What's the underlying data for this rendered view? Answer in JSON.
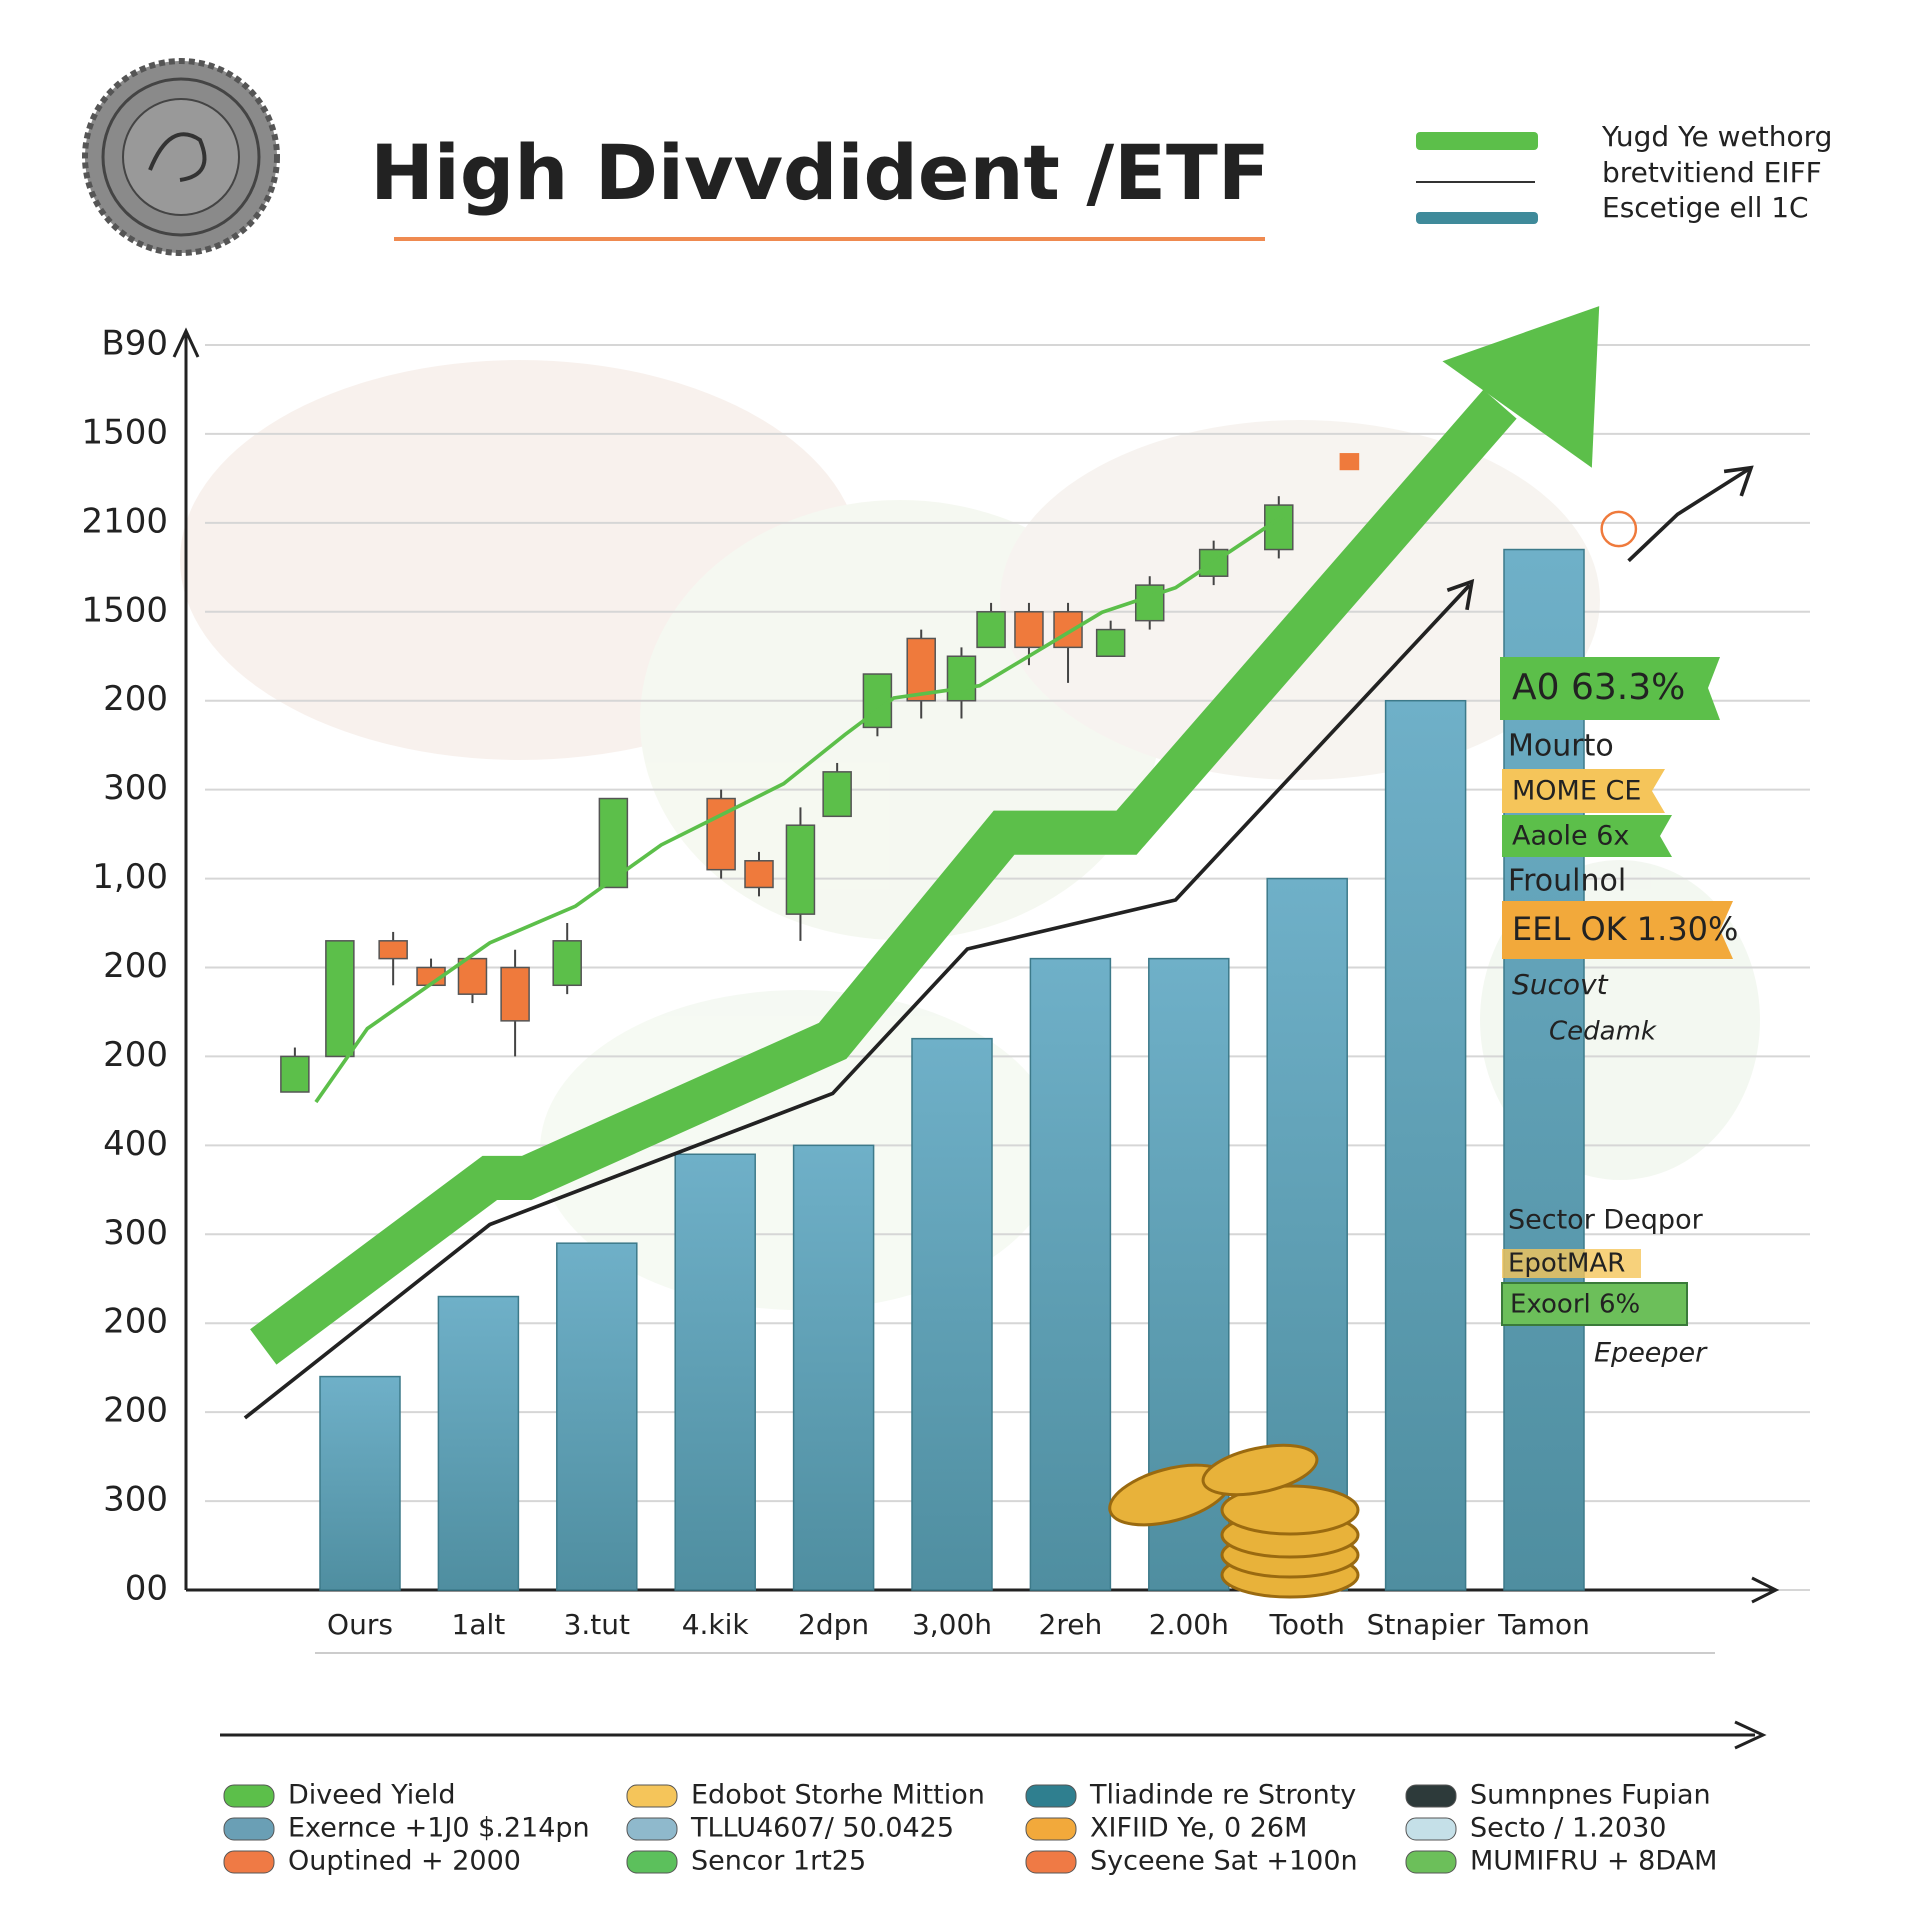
{
  "chart_data": {
    "type": "bar",
    "title": "High Divvdident /ETF",
    "categories": [
      "Ours",
      "1alt",
      "3.tut",
      "4.kik",
      "2dpn",
      "3,00h",
      "2reh",
      "2.00h",
      "Tooth",
      "Stnapier",
      "Tamon"
    ],
    "values": [
      2.4,
      3.3,
      3.9,
      4.9,
      5.0,
      6.2,
      7.1,
      7.1,
      8.0,
      10.0,
      11.7
    ],
    "color": "#6fb0c8",
    "ylim": [
      0,
      14
    ],
    "yticks": [
      {
        "value": 0,
        "label": "00"
      },
      {
        "value": 1,
        "label": "300"
      },
      {
        "value": 2,
        "label": "200"
      },
      {
        "value": 3,
        "label": "200"
      },
      {
        "value": 4,
        "label": "300"
      },
      {
        "value": 5,
        "label": "400"
      },
      {
        "value": 6,
        "label": "200"
      },
      {
        "value": 7,
        "label": "200"
      },
      {
        "value": 8,
        "label": "1,00"
      },
      {
        "value": 9,
        "label": "300"
      },
      {
        "value": 10,
        "label": "200"
      },
      {
        "value": 11,
        "label": "1500"
      },
      {
        "value": 12,
        "label": "2100"
      },
      {
        "value": 13,
        "label": "1500"
      },
      {
        "value": 14,
        "label": "B90"
      }
    ],
    "grid": true,
    "candles": [
      {
        "x": -0.55,
        "open": 5.6,
        "close": 6.0,
        "high": 6.1,
        "low": 5.6
      },
      {
        "x": -0.17,
        "open": 6.0,
        "close": 7.3,
        "high": 7.3,
        "low": 6.0
      },
      {
        "x": 0.28,
        "open": 7.3,
        "close": 7.1,
        "high": 7.4,
        "low": 6.8
      },
      {
        "x": 0.6,
        "open": 7.0,
        "close": 6.8,
        "high": 7.1,
        "low": 6.8
      },
      {
        "x": 0.95,
        "open": 7.1,
        "close": 6.7,
        "high": 7.1,
        "low": 6.6
      },
      {
        "x": 1.31,
        "open": 7.0,
        "close": 6.4,
        "high": 7.2,
        "low": 6.0
      },
      {
        "x": 1.75,
        "open": 6.8,
        "close": 7.3,
        "high": 7.5,
        "low": 6.7
      },
      {
        "x": 2.14,
        "open": 7.9,
        "close": 8.9,
        "high": 8.9,
        "low": 7.9
      },
      {
        "x": 3.05,
        "open": 8.9,
        "close": 8.1,
        "high": 9.0,
        "low": 8.0
      },
      {
        "x": 3.37,
        "open": 8.2,
        "close": 7.9,
        "high": 8.3,
        "low": 7.8
      },
      {
        "x": 3.72,
        "open": 7.6,
        "close": 8.6,
        "high": 8.8,
        "low": 7.3
      },
      {
        "x": 4.03,
        "open": 8.7,
        "close": 9.2,
        "high": 9.3,
        "low": 8.7
      },
      {
        "x": 4.37,
        "open": 9.7,
        "close": 10.3,
        "high": 10.3,
        "low": 9.6
      },
      {
        "x": 4.74,
        "open": 10.7,
        "close": 10.0,
        "high": 10.8,
        "low": 9.8
      },
      {
        "x": 5.08,
        "open": 10.0,
        "close": 10.5,
        "high": 10.6,
        "low": 9.8
      },
      {
        "x": 5.33,
        "open": 10.6,
        "close": 11.0,
        "high": 11.1,
        "low": 10.6
      },
      {
        "x": 5.65,
        "open": 11.0,
        "close": 10.6,
        "high": 11.1,
        "low": 10.4
      },
      {
        "x": 5.98,
        "open": 11.0,
        "close": 10.6,
        "high": 11.1,
        "low": 10.2
      },
      {
        "x": 6.34,
        "open": 10.5,
        "close": 10.8,
        "high": 10.9,
        "low": 10.5
      },
      {
        "x": 6.67,
        "open": 10.9,
        "close": 11.3,
        "high": 11.4,
        "low": 10.8
      },
      {
        "x": 7.21,
        "open": 11.4,
        "close": 11.7,
        "high": 11.8,
        "low": 11.3
      },
      {
        "x": 7.76,
        "open": 11.7,
        "close": 12.2,
        "high": 12.3,
        "low": 11.6
      }
    ],
    "up_color": "#5cbf4a",
    "down_color": "#ef7a3c",
    "top_legend": [
      {
        "name": "Yugd Ye wethorg",
        "color": "#5cbf4a"
      },
      {
        "name": "bretvitiend EIFF",
        "color": "#333333"
      },
      {
        "name": "Escetige ell 1C",
        "color": "#3f8a9a"
      }
    ],
    "annotations": [
      "A0 63.3%",
      "Mourto",
      "MOME CE",
      "Aaole 6x",
      "Froulnol",
      "EEL OK 1.30%",
      "Sucovt",
      "Cedamk",
      "Sector Deqpor",
      "EpotMAR",
      "Exoorl 6%",
      "Epeeper"
    ],
    "legend": [
      {
        "name": "Diveed Yield",
        "color": "#5cbf4a"
      },
      {
        "name": "Exernce +1J0 $.214pn",
        "color": "#6a9fb5"
      },
      {
        "name": "Ouptined + 2000",
        "color": "#ef7a45"
      },
      {
        "name": "Edobot Storhe Mittion",
        "color": "#f5c55a"
      },
      {
        "name": "TLLU4607/ 50.0425",
        "color": "#8fb9cc"
      },
      {
        "name": "Sencor 1rt25",
        "color": "#5cc05c"
      },
      {
        "name": "Tliadinde re Stronty",
        "color": "#2f7f8f"
      },
      {
        "name": "XIFIID Ye, 0 26M",
        "color": "#f2a93b"
      },
      {
        "name": "Syceene Sat +100n",
        "color": "#ef7a45"
      },
      {
        "name": "Sumnpnes Fupian",
        "color": "#2d3a3a"
      },
      {
        "name": "Secto / 1.2030",
        "color": "#c5e0e8"
      },
      {
        "name": "MUMIFRU + 8DAM",
        "color": "#6cbf5a"
      }
    ]
  }
}
